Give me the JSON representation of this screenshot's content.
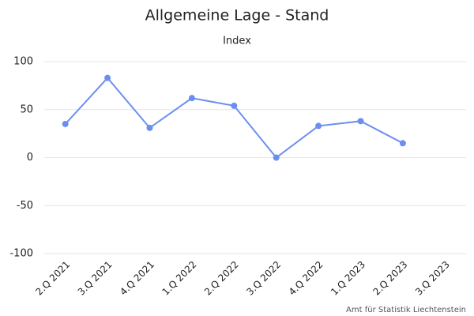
{
  "chart_data": {
    "type": "line",
    "title": "Allgemeine Lage - Stand",
    "subtitle": "Index",
    "categories": [
      "2.Q 2021",
      "3.Q 2021",
      "4.Q 2021",
      "1.Q 2022",
      "2.Q 2022",
      "3.Q 2022",
      "4.Q 2022",
      "1.Q 2023",
      "2.Q 2023",
      "3.Q 2023"
    ],
    "series": [
      {
        "name": "Index",
        "color": "#6b8ff0",
        "values": [
          35,
          83,
          31,
          62,
          54,
          0,
          33,
          38,
          15,
          null
        ]
      }
    ],
    "ylim": [
      -100,
      100
    ],
    "yticks": [
      -100,
      -50,
      0,
      50,
      100
    ],
    "grid": true,
    "credit": "Amt für Statistik Liechtenstein"
  }
}
